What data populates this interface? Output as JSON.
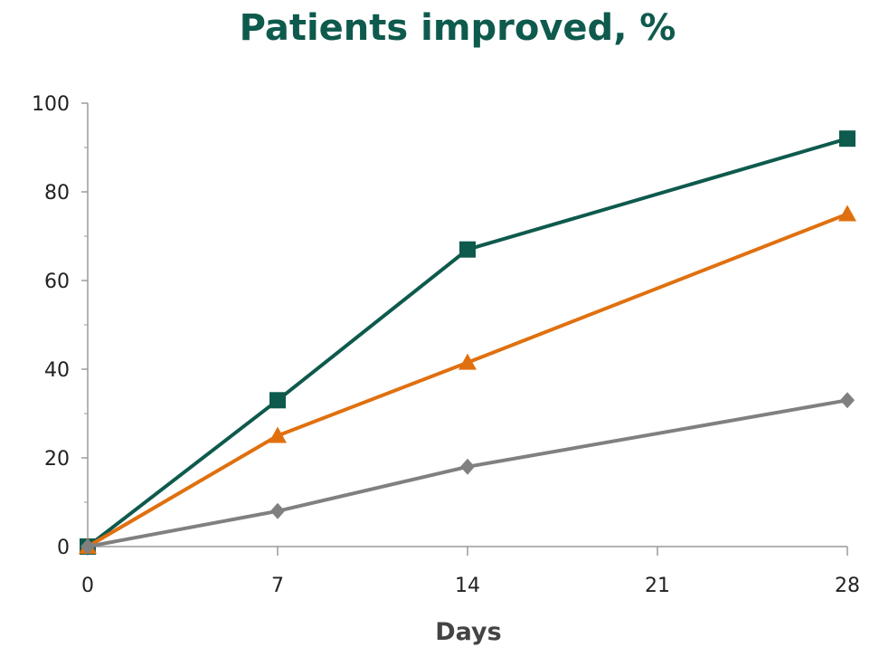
{
  "chart_data": {
    "type": "line",
    "title": "Patients improved, %",
    "xlabel": "Days",
    "ylabel": "",
    "x": [
      0,
      7,
      14,
      28
    ],
    "xticks": [
      0,
      7,
      14,
      21,
      28
    ],
    "yticks": [
      0,
      20,
      40,
      60,
      80,
      100
    ],
    "xlim": [
      0,
      28
    ],
    "ylim": [
      0,
      100
    ],
    "grid": false,
    "legend": "none",
    "series": [
      {
        "color": "#0e5a4d",
        "marker": "square",
        "values": [
          0,
          33,
          67,
          92
        ]
      },
      {
        "color": "#e0700f",
        "marker": "triangle",
        "values": [
          0,
          25,
          41.5,
          75
        ]
      },
      {
        "color": "#808080",
        "marker": "diamond",
        "values": [
          0,
          8,
          18,
          33
        ]
      }
    ]
  }
}
